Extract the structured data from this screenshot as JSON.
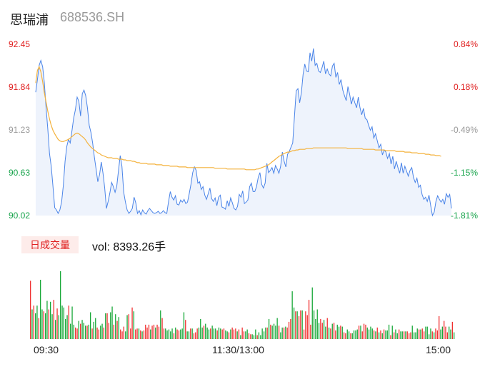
{
  "header": {
    "name": "思瑞浦",
    "code": "688536.SH"
  },
  "price_axis": {
    "left_labels": [
      "92.45",
      "91.84",
      "91.23",
      "90.63",
      "90.02"
    ],
    "right_labels": [
      "0.84%",
      "0.18%",
      "-0.49%",
      "-1.15%",
      "-1.81%"
    ],
    "label_colors": [
      "#e02020",
      "#e02020",
      "#999999",
      "#16a34a",
      "#16a34a"
    ]
  },
  "volume": {
    "badge": "日成交量",
    "label": "vol: 8393.26手"
  },
  "time_axis": {
    "labels": [
      "09:30",
      "11:30/13:00",
      "15:00"
    ]
  },
  "colors": {
    "price_line": "#4a84e8",
    "avg_line": "#f4b23c",
    "up": "#f03030",
    "down": "#18a838"
  },
  "chart_data": {
    "type": "line",
    "title": "",
    "ylim": [
      90.02,
      92.45
    ],
    "series": [
      {
        "values": [
          91.77,
          91.95,
          92.15,
          92.22,
          92.13,
          91.9,
          91.55,
          91.25,
          90.9,
          90.72,
          90.44,
          90.13,
          90.1,
          90.05,
          90.1,
          90.21,
          90.44,
          90.79,
          91.0,
          91.1,
          91.05,
          91.22,
          91.4,
          91.52,
          91.7,
          91.64,
          91.43,
          91.75,
          91.8,
          91.72,
          91.55,
          91.3,
          91.2,
          91.05,
          90.85,
          90.68,
          90.5,
          90.6,
          90.78,
          90.62,
          90.41,
          90.12,
          90.22,
          90.34,
          90.49,
          90.43,
          90.35,
          90.44,
          90.66,
          90.87,
          90.72,
          90.35,
          90.21,
          90.1,
          90.05,
          90.08,
          90.12,
          90.28,
          90.2,
          90.05,
          90.09,
          90.03,
          90.1,
          90.06,
          90.04,
          90.09,
          90.12,
          90.09,
          90.06,
          90.05,
          90.06,
          90.08,
          90.05,
          90.06,
          90.09,
          90.06,
          90.05,
          90.22,
          90.36,
          90.28,
          90.24,
          90.3,
          90.18,
          90.17,
          90.24,
          90.21,
          90.25,
          90.19,
          90.21,
          90.33,
          90.46,
          90.63,
          90.71,
          90.66,
          90.48,
          90.5,
          90.39,
          90.43,
          90.31,
          90.25,
          90.33,
          90.41,
          90.26,
          90.22,
          90.27,
          90.16,
          90.28,
          90.31,
          90.14,
          90.13,
          90.11,
          90.23,
          90.15,
          90.27,
          90.2,
          90.12,
          90.1,
          90.15,
          90.32,
          90.28,
          90.37,
          90.19,
          90.21,
          90.24,
          90.43,
          90.48,
          90.36,
          90.36,
          90.43,
          90.56,
          90.63,
          90.46,
          90.41,
          90.48,
          90.76,
          90.63,
          90.66,
          90.7,
          90.62,
          90.73,
          90.68,
          90.62,
          90.72,
          90.92,
          90.79,
          90.71,
          90.89,
          90.93,
          90.99,
          91.05,
          91.42,
          91.79,
          91.82,
          91.62,
          91.76,
          92.02,
          92.17,
          92.07,
          92.06,
          92.33,
          92.21,
          92.39,
          92.15,
          92.18,
          92.07,
          92.05,
          92.12,
          92.21,
          92.03,
          92.1,
          92.03,
          92.0,
          92.14,
          92.18,
          91.98,
          92.05,
          91.88,
          91.95,
          91.8,
          91.72,
          91.65,
          91.85,
          91.74,
          91.6,
          91.7,
          91.62,
          91.55,
          91.7,
          91.55,
          91.45,
          91.54,
          91.4,
          91.38,
          91.3,
          91.23,
          91.28,
          91.12,
          91.18,
          91.08,
          90.98,
          91.03,
          90.88,
          90.95,
          90.92,
          90.83,
          90.9,
          90.75,
          90.86,
          90.68,
          90.79,
          90.7,
          90.62,
          90.77,
          90.62,
          90.72,
          90.65,
          90.58,
          90.66,
          90.7,
          90.56,
          90.49,
          90.55,
          90.42,
          90.45,
          90.32,
          90.25,
          90.28,
          90.22,
          90.31,
          90.16,
          90.02,
          90.07,
          90.22,
          90.3,
          90.25,
          90.21,
          90.25,
          90.18,
          90.33,
          90.28,
          90.32,
          90.12
        ]
      },
      {
        "values": [
          91.9,
          92.08,
          92.13,
          92.06,
          91.92,
          91.76,
          91.63,
          91.5,
          91.39,
          91.3,
          91.23,
          91.18,
          91.14,
          91.1,
          91.08,
          91.07,
          91.07,
          91.08,
          91.09,
          91.1,
          91.12,
          91.14,
          91.16,
          91.18,
          91.19,
          91.18,
          91.16,
          91.14,
          91.12,
          91.09,
          91.05,
          91.02,
          90.99,
          90.97,
          90.95,
          90.93,
          90.91,
          90.9,
          90.88,
          90.87,
          90.86,
          90.85,
          90.84,
          90.84,
          90.84,
          90.83,
          90.83,
          90.83,
          90.82,
          90.82,
          90.82,
          90.81,
          90.81,
          90.8,
          90.8,
          90.8,
          90.79,
          90.79,
          90.78,
          90.77,
          90.77,
          90.76,
          90.76,
          90.76,
          90.76,
          90.75,
          90.75,
          90.75,
          90.75,
          90.75,
          90.74,
          90.74,
          90.74,
          90.74,
          90.73,
          90.73,
          90.73,
          90.73,
          90.72,
          90.72,
          90.72,
          90.72,
          90.72,
          90.71,
          90.71,
          90.71,
          90.71,
          90.71,
          90.7,
          90.7,
          90.7,
          90.7,
          90.7,
          90.7,
          90.7,
          90.7,
          90.7,
          90.7,
          90.7,
          90.7,
          90.7,
          90.7,
          90.7,
          90.7,
          90.69,
          90.69,
          90.69,
          90.69,
          90.69,
          90.69,
          90.69,
          90.68,
          90.68,
          90.68,
          90.68,
          90.68,
          90.68,
          90.68,
          90.68,
          90.68,
          90.68,
          90.68,
          90.67,
          90.67,
          90.67,
          90.67,
          90.67,
          90.67,
          90.68,
          90.68,
          90.69,
          90.7,
          90.71,
          90.72,
          90.73,
          90.74,
          90.76,
          90.78,
          90.8,
          90.82,
          90.84,
          90.86,
          90.87,
          90.89,
          90.9,
          90.91,
          90.92,
          90.92,
          90.93,
          90.94,
          90.94,
          90.95,
          90.95,
          90.96,
          90.96,
          90.96,
          90.96,
          90.97,
          90.97,
          90.97,
          90.97,
          90.98,
          90.98,
          90.98,
          90.98,
          90.98,
          90.98,
          90.98,
          90.98,
          90.98,
          90.98,
          90.98,
          90.98,
          90.98,
          90.98,
          90.98,
          90.98,
          90.98,
          90.98,
          90.98,
          90.98,
          90.97,
          90.97,
          90.97,
          90.97,
          90.97,
          90.97,
          90.97,
          90.97,
          90.97,
          90.96,
          90.96,
          90.96,
          90.96,
          90.96,
          90.96,
          90.96,
          90.95,
          90.95,
          90.95,
          90.95,
          90.95,
          90.95,
          90.94,
          90.94,
          90.94,
          90.94,
          90.94,
          90.94,
          90.93,
          90.93,
          90.93,
          90.93,
          90.93,
          90.92,
          90.92,
          90.92,
          90.92,
          90.91,
          90.91,
          90.91,
          90.91,
          90.9,
          90.9,
          90.9,
          90.9,
          90.89,
          90.89,
          90.89,
          90.88,
          90.88,
          90.88,
          90.87,
          90.87,
          90.87,
          90.86
        ]
      }
    ],
    "volume_series": {
      "values": [
        61,
        31,
        35,
        27,
        35,
        22,
        62,
        31,
        29,
        27,
        40,
        31,
        39,
        26,
        41,
        20,
        32,
        25,
        71,
        35,
        33,
        21,
        25,
        35,
        16,
        34,
        15,
        12,
        11,
        19,
        16,
        20,
        17,
        14,
        14,
        15,
        28,
        11,
        18,
        22,
        12,
        10,
        14,
        16,
        12,
        27,
        27,
        17,
        28,
        34,
        15,
        26,
        19,
        23,
        10,
        8,
        13,
        8,
        25,
        26,
        11,
        33,
        29,
        10,
        11,
        11,
        9,
        8,
        9,
        15,
        12,
        15,
        10,
        14,
        15,
        12,
        15,
        13,
        30,
        22,
        11,
        11,
        9,
        10,
        8,
        11,
        6,
        12,
        10,
        9,
        10,
        11,
        28,
        20,
        8,
        8,
        11,
        11,
        6,
        7,
        11,
        12,
        21,
        12,
        14,
        16,
        12,
        10,
        11,
        14,
        11,
        11,
        9,
        12,
        11,
        10,
        11,
        9,
        8,
        7,
        10,
        12,
        10,
        11,
        8,
        10,
        4,
        12,
        8,
        8,
        10,
        6,
        5,
        5,
        4,
        10,
        4,
        7,
        4,
        11,
        8,
        12,
        12,
        21,
        15,
        14,
        16,
        14,
        22,
        14,
        7,
        12,
        12,
        13,
        12,
        18,
        21,
        50,
        33,
        29,
        29,
        24,
        30,
        30,
        10,
        29,
        25,
        41,
        15,
        54,
        30,
        21,
        31,
        17,
        21,
        17,
        20,
        13,
        22,
        12,
        11,
        16,
        17,
        9,
        15,
        13,
        14,
        13,
        7,
        6,
        10,
        8,
        6,
        6,
        9,
        9,
        10,
        14,
        14,
        8,
        16,
        15,
        12,
        10,
        13,
        11,
        9,
        8,
        12,
        7,
        9,
        6,
        10,
        9,
        9,
        15,
        4,
        14,
        7,
        10,
        6,
        10,
        8,
        8,
        8,
        8,
        8,
        6,
        7,
        14,
        7,
        7,
        11,
        10,
        10,
        11,
        8,
        13,
        13,
        5,
        11,
        8,
        7,
        11,
        9,
        24,
        10,
        13,
        19,
        13,
        7,
        13,
        10,
        18,
        7
      ],
      "up": [
        1,
        0,
        1,
        0,
        0,
        1,
        0,
        0,
        1,
        0,
        0,
        1,
        0,
        0,
        1,
        0,
        1,
        0,
        0,
        0,
        0,
        0,
        0,
        1,
        0,
        0,
        0,
        1,
        1,
        0,
        1,
        0,
        0,
        0,
        1,
        0,
        0,
        1,
        0,
        0,
        1,
        1,
        0,
        0,
        1,
        0,
        1,
        1,
        0,
        0,
        1,
        0,
        1,
        0,
        1,
        1,
        1,
        0,
        0,
        1,
        1,
        1,
        0,
        1,
        1,
        0,
        1,
        0,
        1,
        1,
        1,
        1,
        0,
        1,
        1,
        0,
        1,
        1,
        0,
        1,
        1,
        0,
        0,
        0,
        0,
        0,
        1,
        0,
        1,
        1,
        0,
        0,
        0,
        1,
        0,
        0,
        1,
        0,
        1,
        1,
        1,
        0,
        0,
        0,
        1,
        0,
        0,
        0,
        1,
        0,
        0,
        0,
        1,
        0,
        0,
        1,
        1,
        0,
        0,
        1,
        0,
        1,
        1,
        1,
        0,
        1,
        0,
        1,
        1,
        0,
        0,
        1,
        1,
        0,
        0,
        0,
        1,
        0,
        0,
        0,
        0,
        0,
        1,
        0,
        1,
        0,
        0,
        0,
        0,
        1,
        0,
        0,
        1,
        0,
        1,
        1,
        1,
        0,
        0,
        1,
        0,
        1,
        1,
        0,
        1,
        1,
        1,
        1,
        1,
        0,
        0,
        0,
        0,
        0,
        1,
        1,
        0,
        0,
        1,
        0,
        1,
        0,
        1,
        1,
        0,
        0,
        1,
        0,
        1,
        1,
        0,
        0,
        1,
        0,
        0,
        0,
        0,
        1,
        0,
        1,
        1,
        1,
        0,
        0,
        0,
        0,
        1,
        0,
        1,
        0,
        1,
        0,
        1,
        0,
        0,
        0,
        1,
        0,
        1,
        0,
        0,
        1,
        0,
        0,
        1,
        0,
        1,
        1,
        1,
        0,
        0,
        0,
        0,
        1,
        0,
        1,
        1,
        0,
        0,
        0,
        0,
        1,
        0,
        1,
        1,
        1,
        0,
        0,
        1,
        1,
        1,
        0,
        0,
        1,
        0
      ]
    }
  }
}
